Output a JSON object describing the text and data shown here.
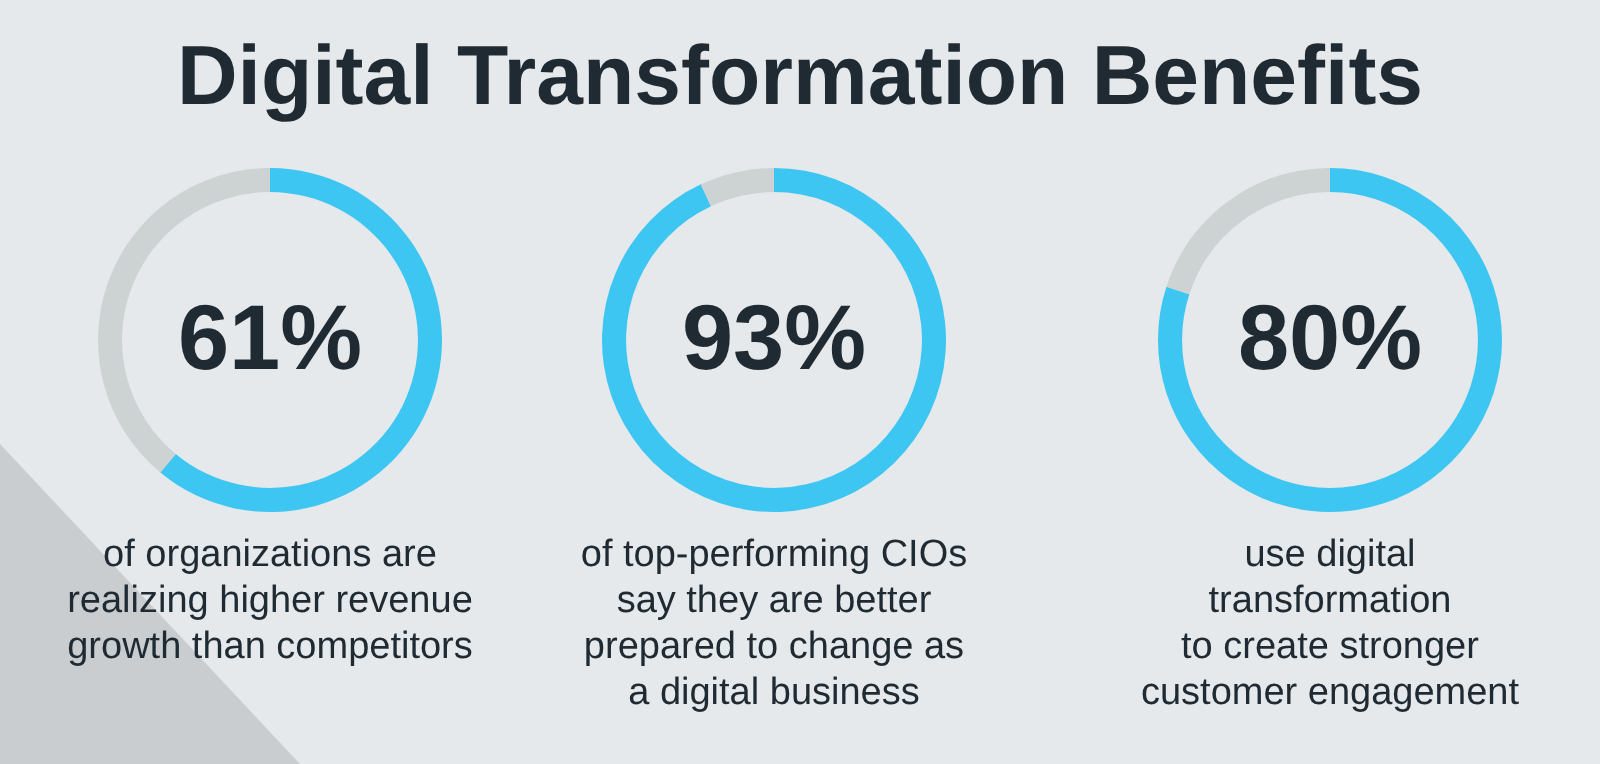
{
  "chart_data": [
    {
      "type": "donut",
      "title": "Digital Transformation Benefits",
      "categories": [
        null,
        null
      ],
      "values": [
        61,
        39
      ],
      "colors": [
        "#3ec6f2",
        "#cdd2d2"
      ],
      "value_labels": [
        "61%",
        null
      ],
      "annotations": [
        "of organizations are\nrealizing higher revenue\ngrowth than competitors"
      ]
    },
    {
      "type": "donut",
      "categories": [
        null,
        null
      ],
      "values": [
        93,
        7
      ],
      "colors": [
        "#3ec6f2",
        "#cdd2d2"
      ],
      "value_labels": [
        "93%",
        null
      ],
      "annotations": [
        "of top-performing CIOs\nsay they are better\nprepared to change as\na digital business"
      ]
    },
    {
      "type": "donut",
      "categories": [
        null,
        null
      ],
      "values": [
        80,
        20
      ],
      "colors": [
        "#3ec6f2",
        "#cdd2d2"
      ],
      "value_labels": [
        "80%",
        null
      ],
      "annotations": [
        "use digital\ntransformation\nto create stronger\ncustomer engagement"
      ]
    }
  ]
}
